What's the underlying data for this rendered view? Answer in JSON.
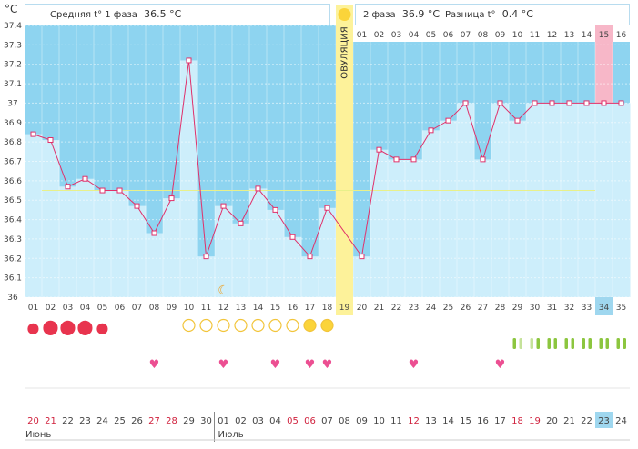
{
  "unit_label": "°C",
  "header": {
    "phase1_label": "Средняя t° 1 фаза",
    "phase1_value": "36.5 °C",
    "phase2_label": "2 фаза",
    "phase2_value": "36.9 °C",
    "diff_label": "Разница t°",
    "diff_value": "0.4 °C"
  },
  "ovulation_label": "ОВУЛЯЦИЯ",
  "colors": {
    "sky": "#8ed4f0",
    "bar": "#cdeefb",
    "line": "#e0306a",
    "ovulation": "#fdf29a",
    "highlight_day": "#f7b7c8",
    "today": "#9fd7ef",
    "weekend_text": "#d0213d",
    "average_line": "#e8f08a",
    "drop": "#e8344e",
    "heart": "#ec4f92",
    "sun": "#fbd43a",
    "sun_outline": "#f2c53c",
    "marker_green": "#8cc63f",
    "marker_light_green": "#c5e29a"
  },
  "chart_data": {
    "type": "line",
    "ylabel": "°C",
    "ylim": [
      36.0,
      37.4
    ],
    "yticks": [
      "37.4",
      "37.3",
      "37.2",
      "37.1",
      "37",
      "36.9",
      "36.8",
      "36.7",
      "36.6",
      "36.5",
      "36.4",
      "36.3",
      "36.2",
      "36.1",
      "36"
    ],
    "cycle_days": [
      "01",
      "02",
      "03",
      "04",
      "05",
      "06",
      "07",
      "08",
      "09",
      "10",
      "11",
      "12",
      "13",
      "14",
      "15",
      "16",
      "17",
      "18",
      "19",
      "20",
      "21",
      "22",
      "23",
      "24",
      "25",
      "26",
      "27",
      "28",
      "29",
      "30",
      "31",
      "32",
      "33",
      "34",
      "35"
    ],
    "temperatures": [
      36.84,
      36.81,
      36.57,
      36.61,
      36.55,
      36.55,
      36.47,
      36.33,
      36.51,
      37.22,
      36.21,
      36.47,
      36.38,
      36.56,
      36.45,
      36.31,
      36.21,
      36.46,
      null,
      36.21,
      36.76,
      36.71,
      36.71,
      36.86,
      36.91,
      37.0,
      36.71,
      37.0,
      36.91,
      37.0,
      37.0,
      37.0,
      37.0,
      37.0,
      37.0
    ],
    "phase1_average": 36.55,
    "ovulation_cycle_day": "19",
    "post_ovulation_days": [
      "01",
      "02",
      "03",
      "04",
      "05",
      "06",
      "07",
      "08",
      "09",
      "10",
      "11",
      "12",
      "13",
      "14",
      "15",
      "16"
    ],
    "highlighted_post_day": "15",
    "today_cycle_day": "34",
    "dates": [
      "20",
      "21",
      "22",
      "23",
      "24",
      "25",
      "26",
      "27",
      "28",
      "29",
      "30",
      "01",
      "02",
      "03",
      "04",
      "05",
      "06",
      "07",
      "08",
      "09",
      "10",
      "11",
      "12",
      "13",
      "14",
      "15",
      "16",
      "17",
      "18",
      "19",
      "20",
      "21",
      "22",
      "23",
      "24"
    ],
    "weekend_date_indexes": [
      0,
      1,
      7,
      8,
      15,
      16,
      22,
      28,
      29
    ],
    "months": [
      "Июнь",
      "Июль"
    ],
    "today_date": "23",
    "drops": [
      1,
      2,
      2,
      2,
      1,
      0,
      0,
      0,
      0,
      0,
      0,
      0,
      0,
      0,
      0,
      0,
      0,
      0,
      0,
      0,
      0,
      0,
      0,
      0,
      0,
      0,
      0,
      0,
      0,
      0,
      0,
      0,
      0,
      0,
      0
    ],
    "suns": [
      "",
      "",
      "",
      "",
      "",
      "",
      "",
      "",
      "",
      "empty",
      "empty",
      "empty",
      "empty",
      "empty",
      "empty",
      "empty",
      "full",
      "full",
      "",
      "",
      "",
      "",
      "",
      "",
      "",
      "",
      "",
      "",
      "",
      "",
      "",
      "",
      "",
      "",
      ""
    ],
    "hearts": [
      8,
      12,
      15,
      17,
      18,
      23,
      28
    ],
    "green_markers": [
      "",
      "",
      "",
      "",
      "",
      "",
      "",
      "",
      "",
      "",
      "",
      "",
      "",
      "",
      "",
      "",
      "",
      "",
      "",
      "",
      "",
      "",
      "",
      "",
      "",
      "",
      "",
      "",
      "dark-light",
      "light-dark",
      "dark-dark",
      "dark-dark",
      "dark-dark",
      "dark-dark",
      "dark-dark"
    ],
    "moon_cycle_day": 12
  }
}
